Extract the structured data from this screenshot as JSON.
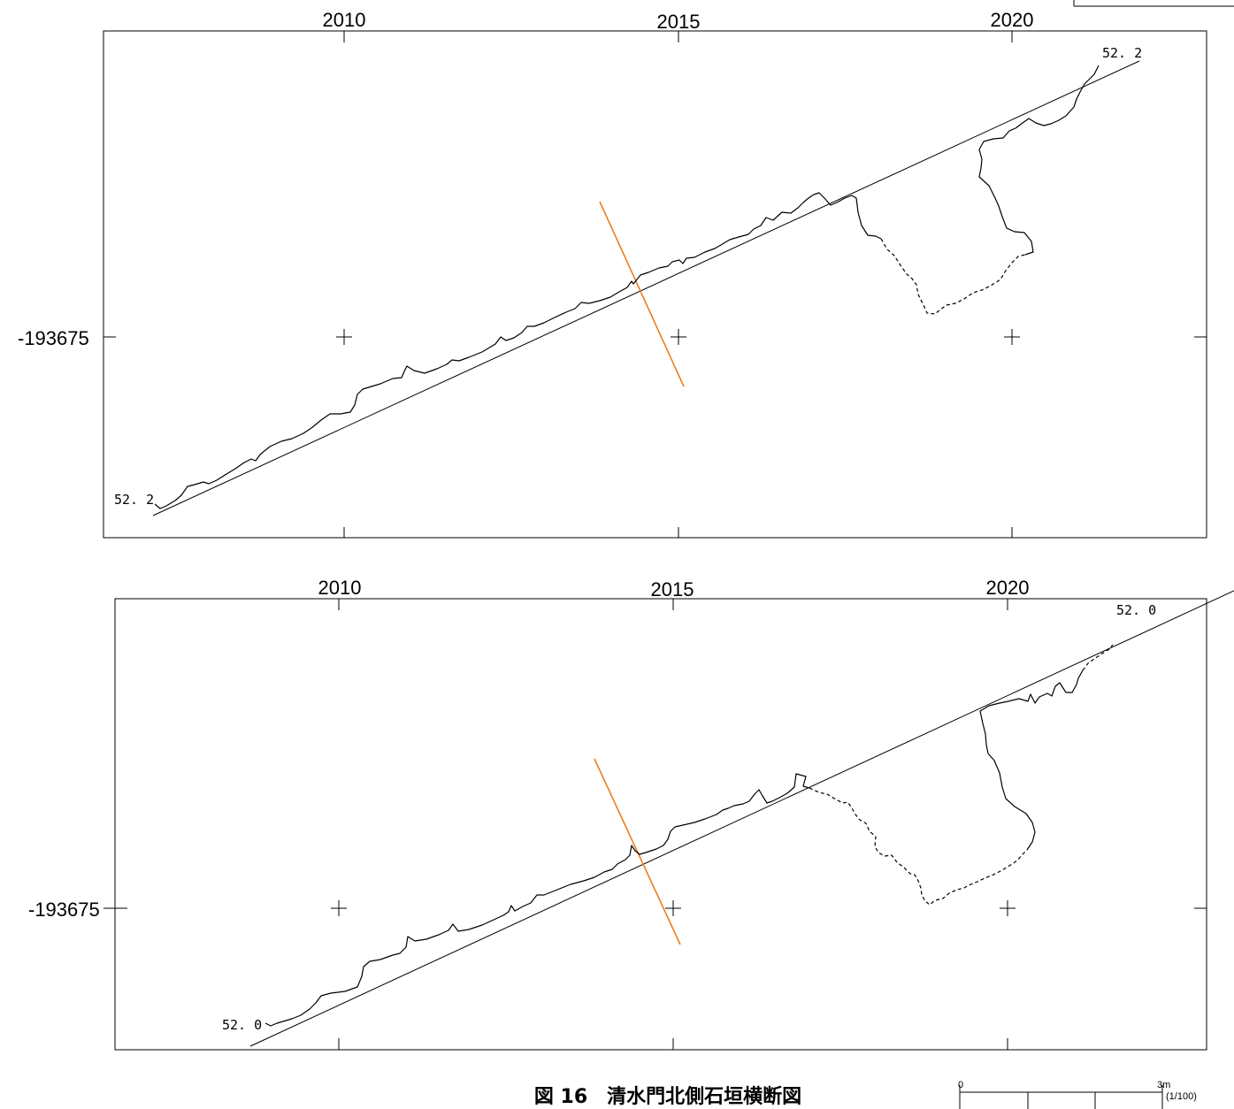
{
  "panels": [
    {
      "x_ticks": [
        "2010",
        "2015",
        "2020"
      ],
      "y_tick": "-193675",
      "left_label": "52. 2",
      "right_label": "52. 2"
    },
    {
      "x_ticks": [
        "2010",
        "2015",
        "2020"
      ],
      "y_tick": "-193675",
      "left_label": "52. 0",
      "right_label": "52. 0"
    }
  ],
  "caption": "図 16　清水門北側石垣横断図",
  "scale": {
    "start": "0",
    "end": "3m",
    "ratio": "(1/100)"
  },
  "colors": {
    "section_line": "#ef7d1a",
    "ink": "#000000"
  }
}
